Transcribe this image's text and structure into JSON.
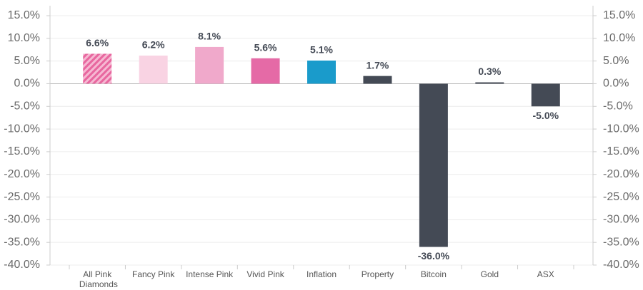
{
  "chart_data": {
    "type": "bar",
    "categories": [
      "All Pink Diamonds",
      "Fancy Pink",
      "Intense Pink",
      "Vivid Pink",
      "Inflation",
      "Property",
      "Bitcoin",
      "Gold",
      "ASX"
    ],
    "values": [
      6.6,
      6.2,
      8.1,
      5.6,
      5.1,
      1.7,
      -36.0,
      0.3,
      -5.0
    ],
    "value_labels": [
      "6.6%",
      "6.2%",
      "8.1%",
      "5.6%",
      "5.1%",
      "1.7%",
      "-36.0%",
      "0.3%",
      "-5.0%"
    ],
    "colors": [
      "#e8679f",
      "#f9d3e3",
      "#f0a9cb",
      "#e56aa6",
      "#1a9bcb",
      "#444a55",
      "#444a55",
      "#444a55",
      "#444a55"
    ],
    "hatch": [
      true,
      false,
      false,
      false,
      false,
      false,
      false,
      false,
      false
    ],
    "ylim": [
      -40,
      15
    ],
    "yticks": [
      {
        "value": 15,
        "label": "15.0%"
      },
      {
        "value": 10,
        "label": "10.0%"
      },
      {
        "value": 5,
        "label": "5.0%"
      },
      {
        "value": 0,
        "label": "0.0%"
      },
      {
        "value": -5,
        "label": "-5.0%"
      },
      {
        "value": -10,
        "label": "-10.0%"
      },
      {
        "value": -15,
        "label": "-15.0%"
      },
      {
        "value": -20,
        "label": "-20.0%"
      },
      {
        "value": -25,
        "label": "-25.0%"
      },
      {
        "value": -30,
        "label": "-30.0%"
      },
      {
        "value": -35,
        "label": "-35.0%"
      },
      {
        "value": -40,
        "label": "-40.0%"
      }
    ],
    "y2lim": [
      -40,
      15
    ],
    "y2ticks": [
      {
        "value": 15,
        "label": "15.0%"
      },
      {
        "value": 10,
        "label": "10.0%"
      },
      {
        "value": 5,
        "label": "5.0%"
      },
      {
        "value": 0,
        "label": "0.0%"
      },
      {
        "value": -5,
        "label": "-5.0%"
      },
      {
        "value": -10,
        "label": "-10.0%"
      },
      {
        "value": -15,
        "label": "-15.0%"
      },
      {
        "value": -20,
        "label": "-20.0%"
      },
      {
        "value": -25,
        "label": "-25.0%"
      },
      {
        "value": -30,
        "label": "-30.0%"
      },
      {
        "value": -35,
        "label": "-35.0%"
      },
      {
        "value": -40,
        "label": "-40.0%"
      }
    ],
    "grid": true
  }
}
